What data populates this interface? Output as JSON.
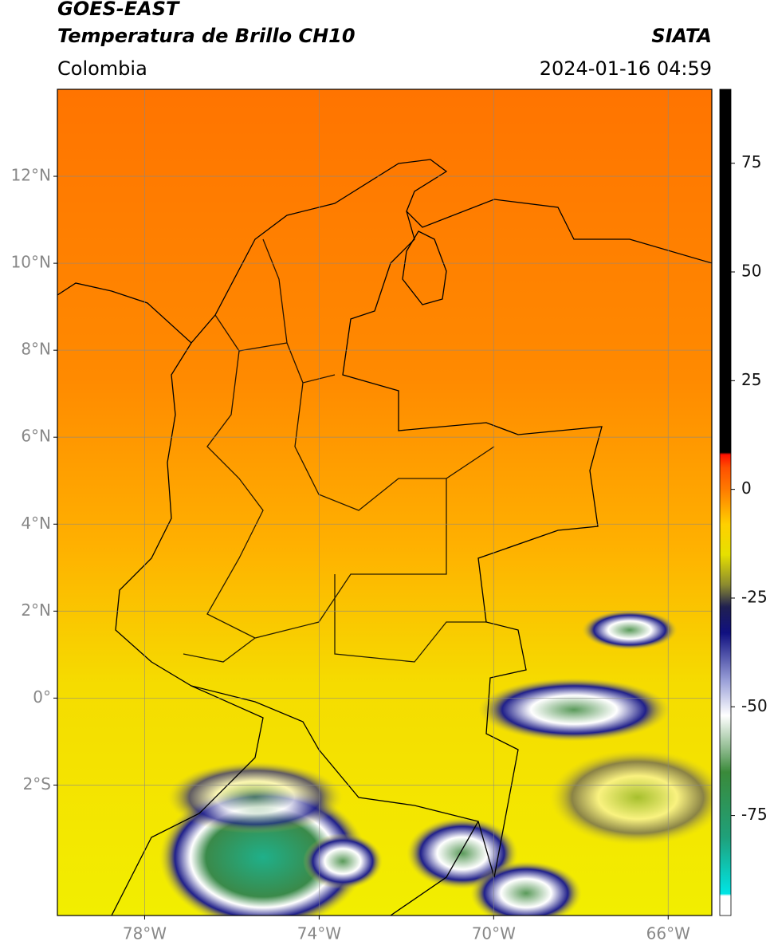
{
  "header": {
    "title": "GOES-EAST",
    "subtitle": "Temperatura de Brillo CH10",
    "source": "SIATA",
    "region": "Colombia",
    "timestamp": "2024-01-16 04:59"
  },
  "map": {
    "xlim": [
      -80,
      -65
    ],
    "ylim": [
      -5,
      14
    ],
    "grid": true,
    "xticks": [
      {
        "value": -78,
        "label": "78°W"
      },
      {
        "value": -74,
        "label": "74°W"
      },
      {
        "value": -70,
        "label": "70°W"
      },
      {
        "value": -66,
        "label": "66°W"
      }
    ],
    "yticks": [
      {
        "value": 12,
        "label": "12°N"
      },
      {
        "value": 10,
        "label": "10°N"
      },
      {
        "value": 8,
        "label": "8°N"
      },
      {
        "value": 6,
        "label": "6°N"
      },
      {
        "value": 4,
        "label": "4°N"
      },
      {
        "value": 2,
        "label": "2°N"
      },
      {
        "value": 0,
        "label": "0°"
      },
      {
        "value": -2,
        "label": "2°S"
      }
    ]
  },
  "colorbar": {
    "lim": [
      -98,
      92
    ],
    "ticks": [
      75,
      50,
      25,
      0,
      -25,
      -50,
      -75
    ],
    "colormap": [
      [
        -98,
        "#ffffff"
      ],
      [
        -93.5,
        "#ffffff"
      ],
      [
        -93,
        "#00e5e5"
      ],
      [
        -80,
        "#1fa07a"
      ],
      [
        -65,
        "#3a8a3a"
      ],
      [
        -60,
        "#8ab88a"
      ],
      [
        -52,
        "#ffffff"
      ],
      [
        -44,
        "#9aa0d8"
      ],
      [
        -33,
        "#101080"
      ],
      [
        -27,
        "#202050"
      ],
      [
        -22,
        "#8a8a30"
      ],
      [
        -15,
        "#e6e000"
      ],
      [
        -8,
        "#ffd000"
      ],
      [
        0,
        "#ff7a00"
      ],
      [
        5,
        "#ff5000"
      ],
      [
        8,
        "#ff1000"
      ],
      [
        8.5,
        "#000000"
      ],
      [
        92,
        "#000000"
      ]
    ]
  }
}
